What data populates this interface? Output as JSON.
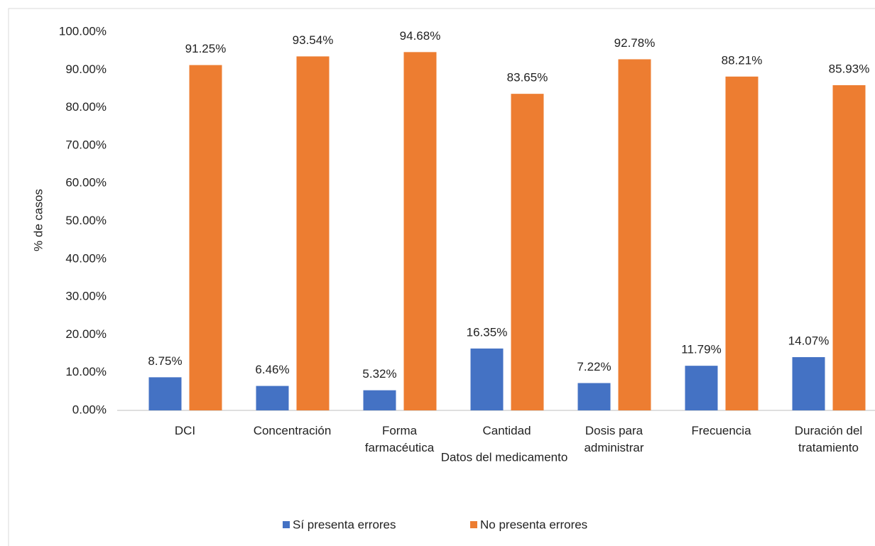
{
  "chart_data": {
    "type": "bar",
    "x_label": "Datos del medicamento",
    "y_label": "% de casos",
    "categories": [
      "DCI",
      "Concentración",
      "Forma farmacéutica",
      "Cantidad",
      "Dosis para administrar",
      "Frecuencia",
      "Duración del tratamiento"
    ],
    "series": [
      {
        "name": "Sí presenta errores",
        "color": "#4472c4",
        "values": [
          8.75,
          6.46,
          5.32,
          16.35,
          7.22,
          11.79,
          14.07
        ],
        "value_labels": [
          "8.75%",
          "6.46%",
          "5.32%",
          "16.35%",
          "7.22%",
          "11.79%",
          "14.07%"
        ]
      },
      {
        "name": "No presenta errores",
        "color": "#ed7d31",
        "values": [
          91.25,
          93.54,
          94.68,
          83.65,
          92.78,
          88.21,
          85.93
        ],
        "value_labels": [
          "91.25%",
          "93.54%",
          "94.68%",
          "83.65%",
          "92.78%",
          "88.21%",
          "85.93%"
        ]
      }
    ],
    "ylim": [
      0,
      100
    ],
    "yticks": [
      {
        "value": 0,
        "label": "0.00%"
      },
      {
        "value": 10,
        "label": "10.00%"
      },
      {
        "value": 20,
        "label": "20.00%"
      },
      {
        "value": 30,
        "label": "30.00%"
      },
      {
        "value": 40,
        "label": "40.00%"
      },
      {
        "value": 50,
        "label": "50.00%"
      },
      {
        "value": 60,
        "label": "60.00%"
      },
      {
        "value": 70,
        "label": "70.00%"
      },
      {
        "value": 80,
        "label": "80.00%"
      },
      {
        "value": 90,
        "label": "90.00%"
      },
      {
        "value": 100,
        "label": "100.00%"
      }
    ],
    "grid": false,
    "legend": "bottom"
  }
}
